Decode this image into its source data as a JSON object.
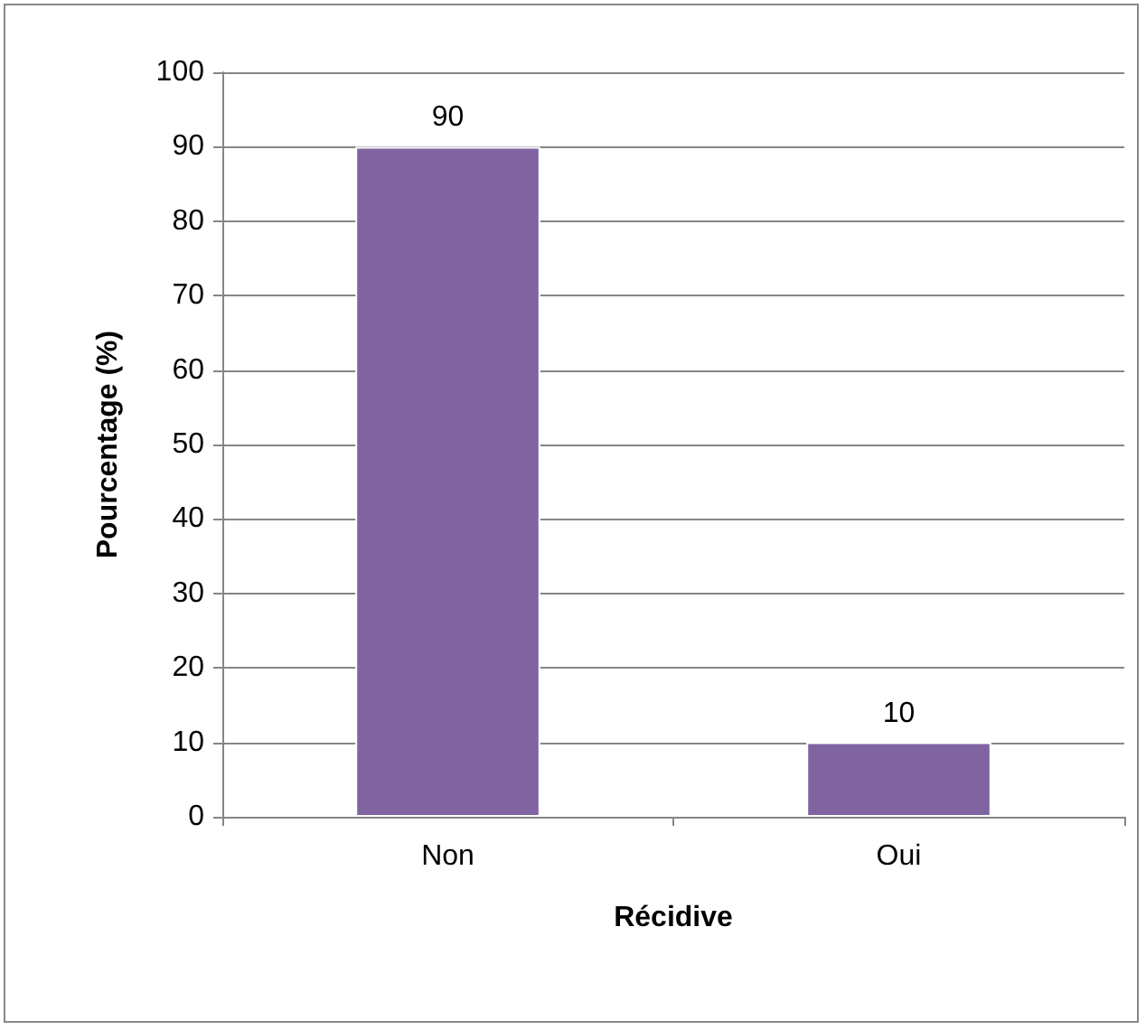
{
  "chart_data": {
    "type": "bar",
    "xlabel": "Récidive",
    "ylabel": "Pourcentage (%)",
    "categories": [
      "Non",
      "Oui"
    ],
    "values": [
      90,
      10
    ],
    "color": "#8064a2",
    "ylim": [
      0,
      100
    ],
    "yticks": [
      0,
      10,
      20,
      30,
      40,
      50,
      60,
      70,
      80,
      90,
      100
    ],
    "grid": "y",
    "data_labels": true
  }
}
